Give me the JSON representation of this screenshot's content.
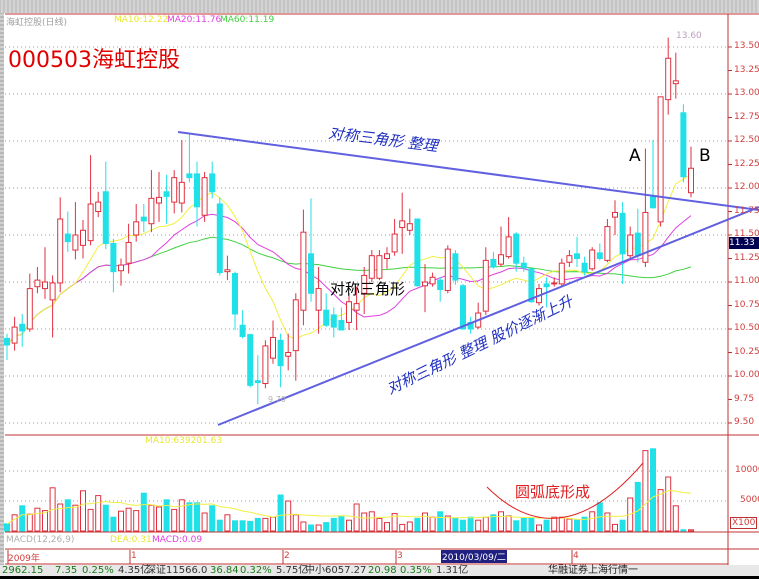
{
  "header": {
    "stock_name_period": "海虹控股(日线)",
    "ma10": "MA10:12.22",
    "ma20": "MA20:11.76",
    "ma60": "MA60:11.19",
    "big_title": "000503海虹控股",
    "high_label": "13.60",
    "low_label": "9.70"
  },
  "colors": {
    "up": "#e03040",
    "down": "#20e0e8",
    "ma10": "#f0f040",
    "ma20": "#e040e0",
    "ma60": "#40d040",
    "trendline": "#6060e0",
    "axis": "#c03030",
    "annotation_blue": "#2030c0",
    "arc_red": "#e02020"
  },
  "price_axis": {
    "ticks": [
      "13.50",
      "13.25",
      "13.00",
      "12.75",
      "12.50",
      "12.25",
      "12.00",
      "11.75",
      "11.50",
      "11.25",
      "11.00",
      "10.75",
      "10.50",
      "10.25",
      "10.00",
      "9.75",
      "9.50"
    ],
    "current_price": "11.33"
  },
  "annotations": {
    "top_line_text": "对称三角形 整理",
    "middle_text": "对称三角形",
    "bottom_line_text": "对称三角形 整理  股价逐渐上升",
    "point_a": "A",
    "point_b": "B",
    "arc_text": "圆弧底形成"
  },
  "volume_panel": {
    "legend": "MA10:639201.63",
    "ticks": [
      "10000",
      "5000"
    ],
    "unit": "X100"
  },
  "macd_panel": {
    "title": "MACD(12,26,9)",
    "dea": "DEA:0.31",
    "macd": "MACD:0.09"
  },
  "date_axis": {
    "labels": [
      "2009年",
      "1",
      "2",
      "3",
      "4"
    ],
    "cursor_date": "2010/03/09/二"
  },
  "status_bar": {
    "sh": "2962.15",
    "sh_change": "7.35",
    "sh_pct": "0.25%",
    "sh_amount": "4.35亿",
    "sz": "深证11566.0",
    "sz_change": "36.84",
    "sz_pct": "0.32%",
    "sz_amount": "5.75亿",
    "zx": "中小6057.27",
    "zx_change": "20.98",
    "zx_pct": "0.35%",
    "zx_amount": "1.31亿",
    "broker": "华融证券上海行情一"
  },
  "chart_data": {
    "type": "candlestick",
    "ylim": [
      9.5,
      13.6
    ],
    "ohlc": [
      [
        10.4,
        10.45,
        10.17,
        10.33
      ],
      [
        10.35,
        10.63,
        10.27,
        10.52
      ],
      [
        10.55,
        10.66,
        10.31,
        10.48
      ],
      [
        10.5,
        11.09,
        10.47,
        10.93
      ],
      [
        10.95,
        11.16,
        10.88,
        11.02
      ],
      [
        10.93,
        11.37,
        10.82,
        11.0
      ],
      [
        10.81,
        11.07,
        10.41,
        10.99
      ],
      [
        10.99,
        11.9,
        10.89,
        11.67
      ],
      [
        11.51,
        11.75,
        11.32,
        11.43
      ],
      [
        11.34,
        11.85,
        11.24,
        11.5
      ],
      [
        11.39,
        11.66,
        11.25,
        11.55
      ],
      [
        11.44,
        12.35,
        11.39,
        11.83
      ],
      [
        11.75,
        11.96,
        11.69,
        11.85
      ],
      [
        11.96,
        12.28,
        11.35,
        11.41
      ],
      [
        11.41,
        11.46,
        10.89,
        11.11
      ],
      [
        11.12,
        11.25,
        10.96,
        11.18
      ],
      [
        11.2,
        11.62,
        11.09,
        11.42
      ],
      [
        11.5,
        11.83,
        11.43,
        11.64
      ],
      [
        11.69,
        11.83,
        11.53,
        11.65
      ],
      [
        11.62,
        12.19,
        11.53,
        11.89
      ],
      [
        11.84,
        12.17,
        11.64,
        11.9
      ],
      [
        11.96,
        12.14,
        11.62,
        11.91
      ],
      [
        11.85,
        12.19,
        11.73,
        12.11
      ],
      [
        11.84,
        12.51,
        11.74,
        12.06
      ],
      [
        12.15,
        12.58,
        12.06,
        12.11
      ],
      [
        12.15,
        12.28,
        11.59,
        11.8
      ],
      [
        11.71,
        12.17,
        11.64,
        12.11
      ],
      [
        12.15,
        12.28,
        11.89,
        11.96
      ],
      [
        11.83,
        11.9,
        11.07,
        11.1
      ],
      [
        11.11,
        11.28,
        11.02,
        11.13
      ],
      [
        11.09,
        11.11,
        10.49,
        10.66
      ],
      [
        10.54,
        10.7,
        10.4,
        10.42
      ],
      [
        10.44,
        10.45,
        9.88,
        9.9
      ],
      [
        9.95,
        10.22,
        9.7,
        9.93
      ],
      [
        9.92,
        10.38,
        9.87,
        10.32
      ],
      [
        10.19,
        10.59,
        10.13,
        10.41
      ],
      [
        10.38,
        10.45,
        9.88,
        10.11
      ],
      [
        10.21,
        10.45,
        10.06,
        10.25
      ],
      [
        10.27,
        10.88,
        9.95,
        10.81
      ],
      [
        10.7,
        11.77,
        10.54,
        11.53
      ],
      [
        11.3,
        11.89,
        10.79,
        10.88
      ],
      [
        10.7,
        11.16,
        10.45,
        10.93
      ],
      [
        10.7,
        10.88,
        10.52,
        10.54
      ],
      [
        10.65,
        10.73,
        10.41,
        10.52
      ],
      [
        10.59,
        10.73,
        10.49,
        10.49
      ],
      [
        10.57,
        10.88,
        10.49,
        10.79
      ],
      [
        10.7,
        10.95,
        10.49,
        10.77
      ],
      [
        10.88,
        11.16,
        10.66,
        11.07
      ],
      [
        11.04,
        11.34,
        11.0,
        11.28
      ],
      [
        11.04,
        11.34,
        11.02,
        11.28
      ],
      [
        11.25,
        11.37,
        11.14,
        11.3
      ],
      [
        11.32,
        11.67,
        11.28,
        11.51
      ],
      [
        11.58,
        11.95,
        11.3,
        11.65
      ],
      [
        11.55,
        11.78,
        11.5,
        11.62
      ],
      [
        11.67,
        11.67,
        10.95,
        10.96
      ],
      [
        10.96,
        11.19,
        10.68,
        11.0
      ],
      [
        10.98,
        11.1,
        10.95,
        11.05
      ],
      [
        11.02,
        11.05,
        10.79,
        10.92
      ],
      [
        10.91,
        11.39,
        10.88,
        11.35
      ],
      [
        11.3,
        11.34,
        10.97,
        11.02
      ],
      [
        10.96,
        10.98,
        10.5,
        10.5
      ],
      [
        10.57,
        10.63,
        10.45,
        10.5
      ],
      [
        10.52,
        10.78,
        10.5,
        10.67
      ],
      [
        10.69,
        11.37,
        10.65,
        11.23
      ],
      [
        11.24,
        11.32,
        11.14,
        11.16
      ],
      [
        11.19,
        11.59,
        11.16,
        11.29
      ],
      [
        11.27,
        11.69,
        11.25,
        11.48
      ],
      [
        11.51,
        11.53,
        11.11,
        11.2
      ],
      [
        11.2,
        11.27,
        11.11,
        11.15
      ],
      [
        11.14,
        11.16,
        10.78,
        10.79
      ],
      [
        10.78,
        10.98,
        10.75,
        10.93
      ],
      [
        10.98,
        11.05,
        10.73,
        10.95
      ],
      [
        10.98,
        11.05,
        10.95,
        10.99
      ],
      [
        10.98,
        11.25,
        10.95,
        11.2
      ],
      [
        11.21,
        11.34,
        11.16,
        11.28
      ],
      [
        11.3,
        11.48,
        11.16,
        11.25
      ],
      [
        11.2,
        11.27,
        11.07,
        11.11
      ],
      [
        11.14,
        11.37,
        11.12,
        11.34
      ],
      [
        11.31,
        11.41,
        11.23,
        11.25
      ],
      [
        11.23,
        11.67,
        11.21,
        11.59
      ],
      [
        11.69,
        11.87,
        11.5,
        11.74
      ],
      [
        11.73,
        11.85,
        10.98,
        11.3
      ],
      [
        11.28,
        11.59,
        11.23,
        11.5
      ],
      [
        11.52,
        11.78,
        11.21,
        11.28
      ],
      [
        11.21,
        12.42,
        11.16,
        11.74
      ],
      [
        11.91,
        12.51,
        11.78,
        11.79
      ],
      [
        11.64,
        12.97,
        11.59,
        12.97
      ],
      [
        12.94,
        13.6,
        12.78,
        13.38
      ],
      [
        13.11,
        13.44,
        12.95,
        13.14
      ],
      [
        12.8,
        12.89,
        12.06,
        12.12
      ],
      [
        11.95,
        12.44,
        11.9,
        12.21
      ]
    ],
    "volume": [
      1200,
      2700,
      4200,
      2800,
      3800,
      3400,
      7200,
      4500,
      5200,
      4300,
      6700,
      3600,
      5900,
      4300,
      2300,
      3300,
      3800,
      3400,
      6300,
      4300,
      4000,
      5200,
      3600,
      5200,
      4700,
      4700,
      3000,
      4200,
      1800,
      2700,
      1700,
      1700,
      1600,
      2100,
      2100,
      2300,
      6000,
      5000,
      2700,
      1500,
      1000,
      1000,
      1400,
      2100,
      2400,
      1800,
      4500,
      3000,
      3200,
      2100,
      1400,
      2900,
      1100,
      1500,
      2100,
      3000,
      2300,
      3200,
      2500,
      2100,
      1800,
      2300,
      1800,
      2300,
      2700,
      3200,
      2500,
      1700,
      2100,
      2100,
      1000,
      1800,
      2300,
      2300,
      2000,
      1800,
      2300,
      3200,
      4700,
      3000,
      1100,
      1800,
      5500,
      8100,
      13400,
      13700,
      6900,
      9000,
      4200,
      200,
      200
    ]
  }
}
